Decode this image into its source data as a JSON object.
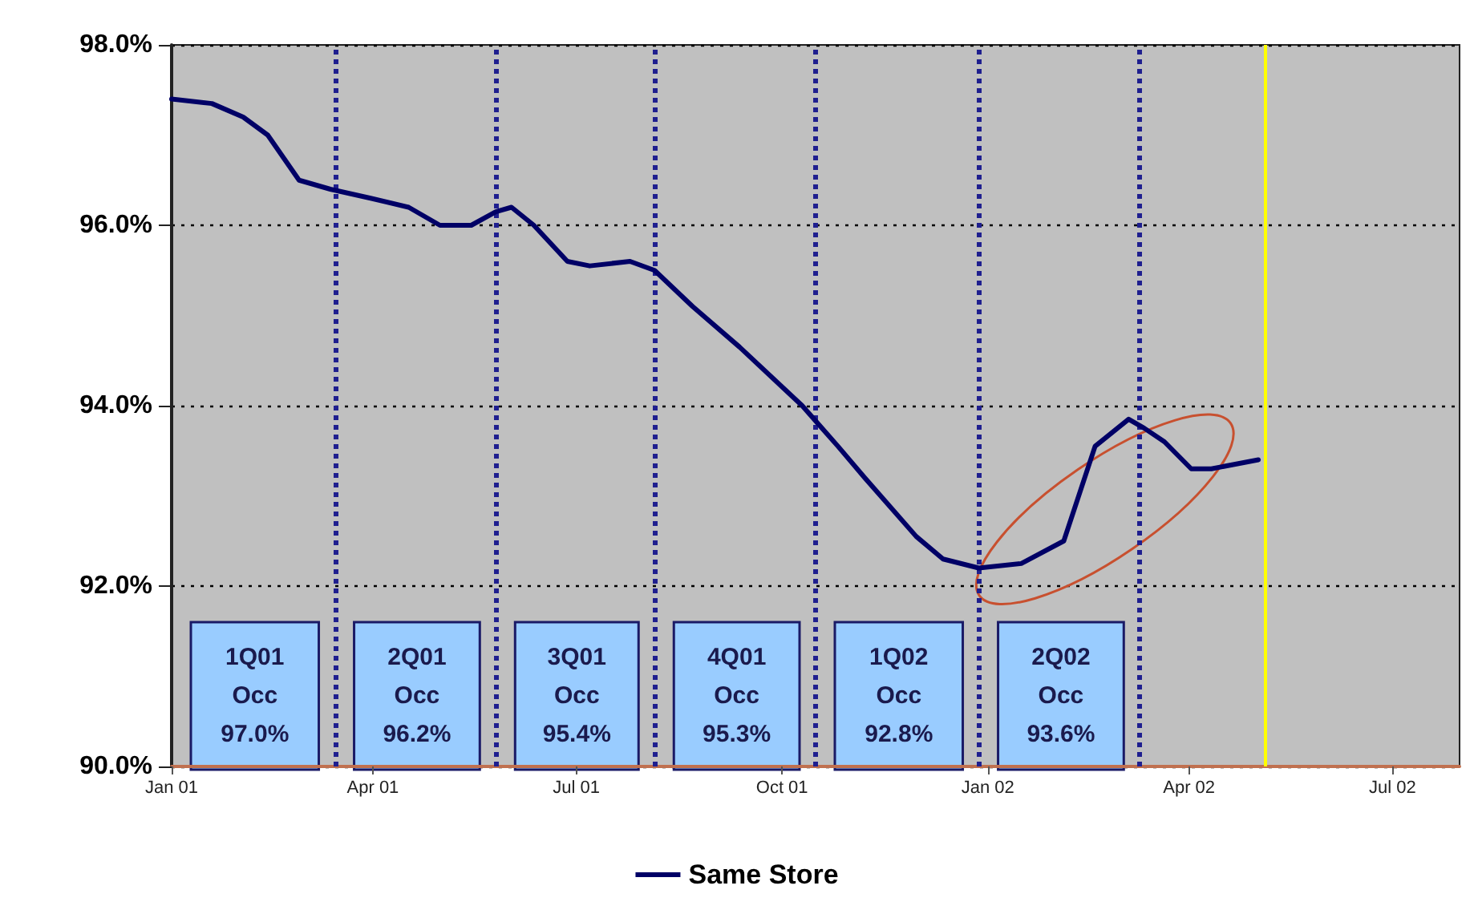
{
  "chart_data": {
    "type": "line",
    "x": [
      "2001-01-01",
      "2001-01-19",
      "2001-02-02",
      "2001-02-13",
      "2001-02-27",
      "2001-03-13",
      "2001-03-31",
      "2001-04-17",
      "2001-05-01",
      "2001-05-15",
      "2001-05-26",
      "2001-06-02",
      "2001-06-12",
      "2001-06-27",
      "2001-07-07",
      "2001-07-25",
      "2001-08-05",
      "2001-08-22",
      "2001-09-12",
      "2001-10-10",
      "2001-10-26",
      "2001-11-07",
      "2001-11-30",
      "2001-12-12",
      "2001-12-28",
      "2002-01-16",
      "2002-02-04",
      "2002-02-18",
      "2002-02-28",
      "2002-03-05",
      "2002-03-12",
      "2002-03-21",
      "2002-04-02",
      "2002-04-11",
      "2002-05-02"
    ],
    "series": [
      {
        "name": "Same Store",
        "color": "#000066",
        "values": [
          97.4,
          97.35,
          97.2,
          97.0,
          96.5,
          96.4,
          96.3,
          96.2,
          96.0,
          96.0,
          96.15,
          96.2,
          96.0,
          95.6,
          95.55,
          95.6,
          95.5,
          95.1,
          94.65,
          94.0,
          93.55,
          93.2,
          92.55,
          92.3,
          92.2,
          92.25,
          92.5,
          93.55,
          93.75,
          93.85,
          93.75,
          93.6,
          93.3,
          93.3,
          93.4
        ]
      }
    ],
    "xlim": [
      "2001-01-01",
      "2002-07-31"
    ],
    "xticks": [
      {
        "value": "2001-01-01",
        "label": "Jan 01"
      },
      {
        "value": "2001-04-01",
        "label": "Apr 01"
      },
      {
        "value": "2001-07-01",
        "label": "Jul 01"
      },
      {
        "value": "2001-10-01",
        "label": "Oct 01"
      },
      {
        "value": "2002-01-01",
        "label": "Jan 02"
      },
      {
        "value": "2002-04-01",
        "label": "Apr 02"
      },
      {
        "value": "2002-07-01",
        "label": "Jul 02"
      }
    ],
    "ylim": [
      90,
      98
    ],
    "yticks": [
      {
        "value": 90,
        "label": "90.0%"
      },
      {
        "value": 92,
        "label": "92.0%"
      },
      {
        "value": 94,
        "label": "94.0%"
      },
      {
        "value": 96,
        "label": "96.0%"
      },
      {
        "value": 98,
        "label": "98.0%"
      }
    ],
    "ref_lines": [
      {
        "axis": "x",
        "value": "2001-03-15",
        "color": "#1f1f8f",
        "line_style": "dotted"
      },
      {
        "axis": "x",
        "value": "2001-05-26",
        "color": "#1f1f8f",
        "line_style": "dotted"
      },
      {
        "axis": "x",
        "value": "2001-08-05",
        "color": "#1f1f8f",
        "line_style": "dotted"
      },
      {
        "axis": "x",
        "value": "2001-10-16",
        "color": "#1f1f8f",
        "line_style": "dotted"
      },
      {
        "axis": "x",
        "value": "2001-12-28",
        "color": "#1f1f8f",
        "line_style": "dotted"
      },
      {
        "axis": "x",
        "value": "2002-03-10",
        "color": "#1f1f8f",
        "line_style": "dotted"
      },
      {
        "axis": "x",
        "value": "2002-05-05",
        "color": "#ffff00",
        "line_style": "solid"
      }
    ],
    "annotations": [
      "1Q01\nOcc\n97.0%",
      "2Q01\nOcc\n96.2%",
      "3Q01\nOcc\n95.4%",
      "4Q01\nOcc\n95.3%",
      "1Q02\nOcc\n92.8%",
      "2Q02\nOcc\n93.6%"
    ],
    "grid": "y",
    "legend": "bottom",
    "marker": "none",
    "line_style": "solid"
  }
}
